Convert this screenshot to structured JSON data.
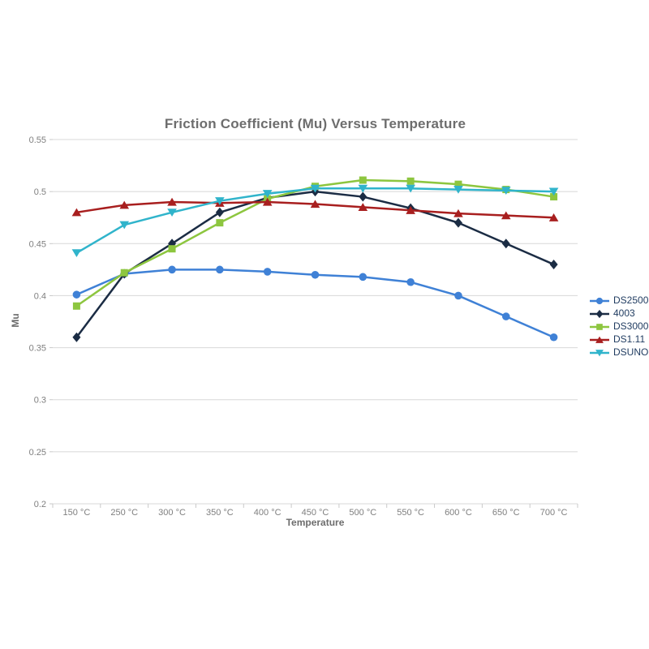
{
  "chart_data": {
    "type": "line",
    "title": "Friction Coefficient (Mu) Versus Temperature",
    "xlabel": "Temperature",
    "ylabel": "Mu",
    "categories": [
      "150 °C",
      "250 °C",
      "300 °C",
      "350 °C",
      "400 °C",
      "450 °C",
      "500 °C",
      "550 °C",
      "600 °C",
      "650 °C",
      "700 °C"
    ],
    "ylim": [
      0.2,
      0.55
    ],
    "ytick_labels": [
      "0.2",
      "0.25",
      "0.3",
      "0.35",
      "0.4",
      "0.45",
      "0.5",
      "0.55"
    ],
    "grid": "horizontal",
    "legend_position": "right",
    "series": [
      {
        "name": "DS2500",
        "color": "#3f81d6",
        "marker": "circle",
        "values": [
          0.401,
          0.421,
          0.425,
          0.425,
          0.423,
          0.42,
          0.418,
          0.413,
          0.4,
          0.38,
          0.36
        ]
      },
      {
        "name": "4003",
        "color": "#1b2c44",
        "marker": "diamond",
        "values": [
          0.36,
          0.421,
          0.45,
          0.48,
          0.494,
          0.5,
          0.495,
          0.484,
          0.47,
          0.45,
          0.43
        ]
      },
      {
        "name": "DS3000",
        "color": "#8dc63f",
        "marker": "square",
        "values": [
          0.39,
          0.422,
          0.445,
          0.47,
          0.493,
          0.505,
          0.511,
          0.51,
          0.507,
          0.502,
          0.495
        ]
      },
      {
        "name": "DS1.11",
        "color": "#a81f1f",
        "marker": "triangle-up",
        "values": [
          0.48,
          0.487,
          0.49,
          0.489,
          0.49,
          0.488,
          0.485,
          0.482,
          0.479,
          0.477,
          0.475
        ]
      },
      {
        "name": "DSUNO",
        "color": "#30b4cb",
        "marker": "triangle-down",
        "values": [
          0.441,
          0.468,
          0.48,
          0.491,
          0.498,
          0.503,
          0.503,
          0.503,
          0.502,
          0.501,
          0.5
        ]
      }
    ],
    "colors": {
      "background": "#ffffff",
      "grid": "#d8d8d8",
      "axis_tick": "#c9c9c9",
      "title": "#6d6d6d",
      "axis_label": "#6d6d6d",
      "tick_label": "#7f7f7f",
      "legend_text": "#1e3a5f"
    }
  }
}
